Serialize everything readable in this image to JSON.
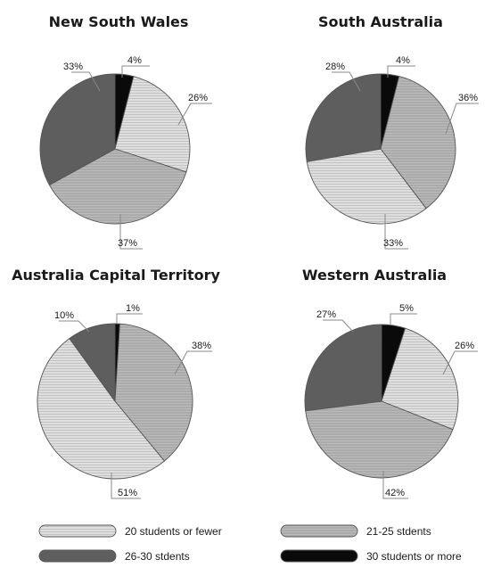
{
  "chart_data": [
    {
      "type": "pie",
      "title": "New South Wales",
      "categories": [
        "30 students or more",
        "20 students or fewer",
        "21-25 stdents",
        "26-30 stdents"
      ],
      "values": [
        4,
        26,
        37,
        33
      ],
      "labels": [
        "4%",
        "26%",
        "37%",
        "33%"
      ]
    },
    {
      "type": "pie",
      "title": "South Australia",
      "categories": [
        "30 students or more",
        "21-25 stdents",
        "20 students or fewer",
        "26-30 stdents"
      ],
      "values": [
        4,
        36,
        33,
        28
      ],
      "labels": [
        "4%",
        "36%",
        "33%",
        "28%"
      ]
    },
    {
      "type": "pie",
      "title": "Australia Capital Territory",
      "categories": [
        "30 students or more",
        "21-25 stdents",
        "20 students or fewer",
        "26-30 stdents"
      ],
      "values": [
        1,
        38,
        51,
        10
      ],
      "labels": [
        "1%",
        "38%",
        "51%",
        "10%"
      ]
    },
    {
      "type": "pie",
      "title": "Western Australia",
      "categories": [
        "30 students or more",
        "20 students or fewer",
        "21-25 stdents",
        "26-30 stdents"
      ],
      "values": [
        5,
        26,
        42,
        27
      ],
      "labels": [
        "5%",
        "26%",
        "42%",
        "27%"
      ]
    }
  ],
  "legend": [
    {
      "label": "20 students or fewer",
      "category": "20 students or fewer"
    },
    {
      "label": "21-25 stdents",
      "category": "21-25 stdents"
    },
    {
      "label": "26-30 stdents",
      "category": "26-30 stdents"
    },
    {
      "label": "30 students or more",
      "category": "30 students or more"
    }
  ],
  "colors": {
    "20 students or fewer": "#dcdcdc",
    "21-25 stdents": "#a8a8a8",
    "26-30 stdents": "#5e5e5e",
    "30 students or more": "#0a0a0a"
  }
}
